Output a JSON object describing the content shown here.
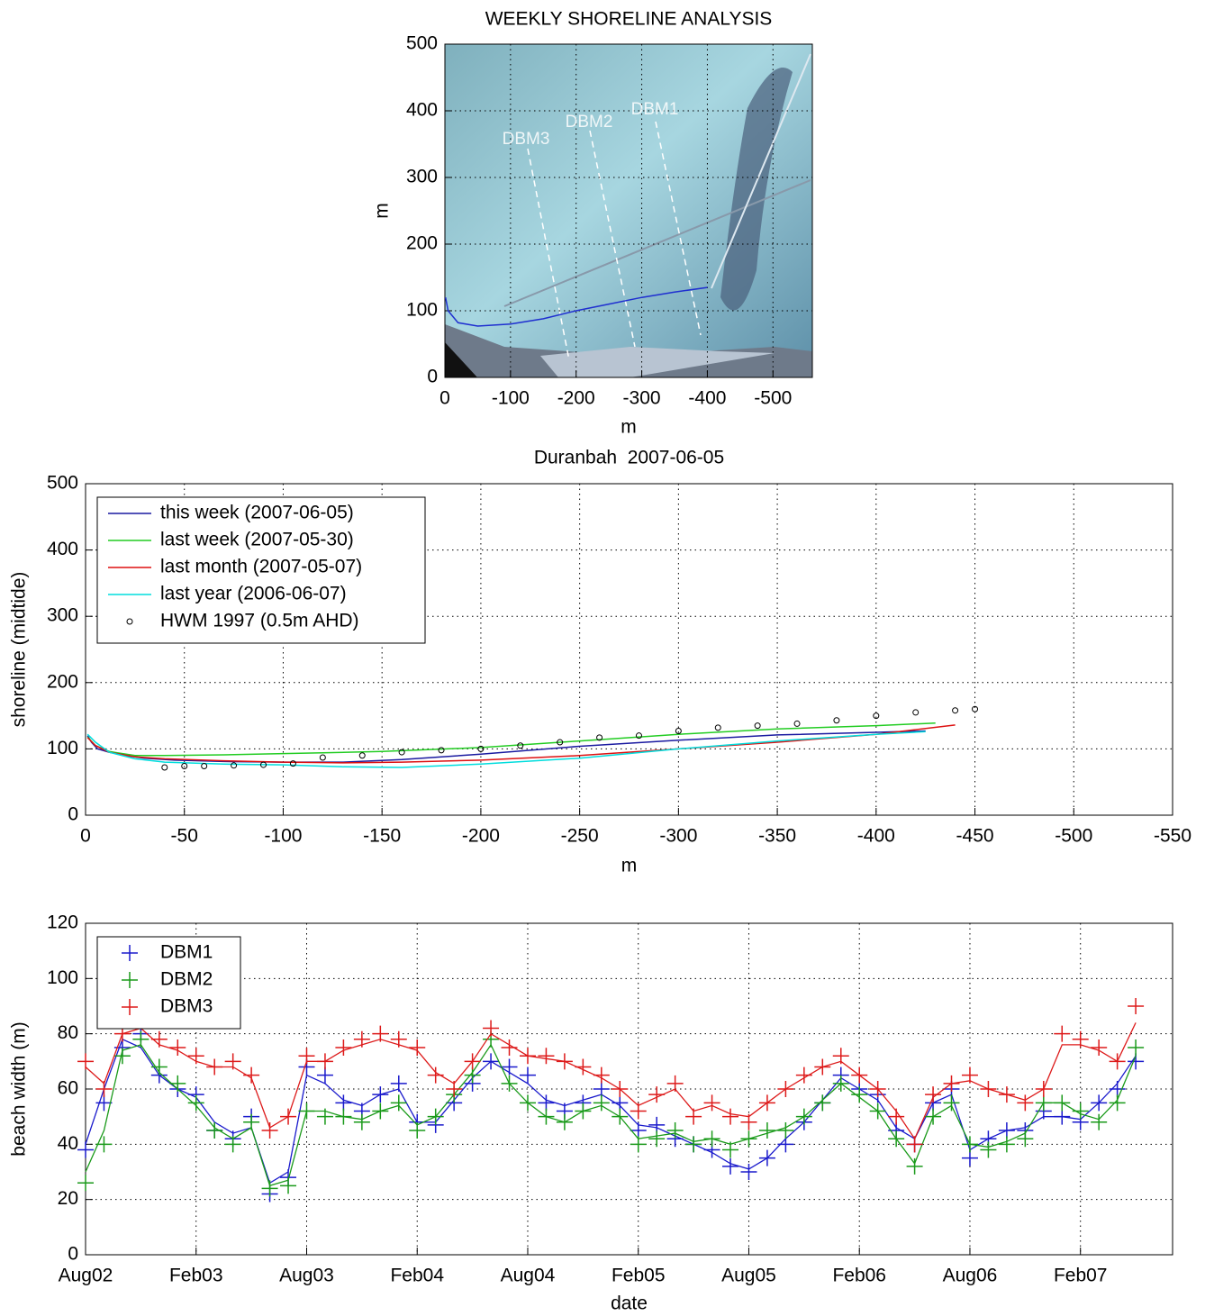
{
  "chart_data": [
    {
      "type": "line",
      "title": "WEEKLY SHORELINE ANALYSIS",
      "xlabel": "m",
      "ylabel": "m",
      "annotations": [
        "DBM3",
        "DBM2",
        "DBM1"
      ],
      "xlim": [
        0,
        -560
      ],
      "xticks": [
        0,
        -100,
        -200,
        -300,
        -400,
        -500
      ],
      "ylim": [
        0,
        500
      ],
      "yticks": [
        0,
        100,
        200,
        300,
        400,
        500
      ],
      "grid": true,
      "series": [
        {
          "color": "#1f2fd0",
          "x": [
            -1,
            -5,
            -20,
            -50,
            -100,
            -150,
            -200,
            -250,
            -300,
            -350,
            -400
          ],
          "values": [
            120,
            100,
            82,
            77,
            80,
            88,
            100,
            110,
            120,
            128,
            135
          ]
        }
      ]
    },
    {
      "type": "line",
      "title": "Duranbah  2007-06-05",
      "xlabel": "m",
      "ylabel": "shoreline (midtide)",
      "xlim": [
        0,
        -550
      ],
      "xticks": [
        0,
        -50,
        -100,
        -150,
        -200,
        -250,
        -300,
        -350,
        -400,
        -450,
        -500,
        -550
      ],
      "ylim": [
        0,
        500
      ],
      "yticks": [
        0,
        100,
        200,
        300,
        400,
        500
      ],
      "grid": true,
      "legend": "upper left",
      "series": [
        {
          "name": "this week (2007-06-05)",
          "color": "#1a1aa0",
          "x": [
            -1,
            -3,
            -6,
            -12,
            -20,
            -30,
            -45,
            -70,
            -100,
            -130,
            -160,
            -200,
            -250,
            -300,
            -350,
            -400,
            -425
          ],
          "values": [
            120,
            110,
            100,
            95,
            90,
            86,
            83,
            81,
            80,
            80,
            84,
            92,
            104,
            113,
            121,
            125,
            127
          ]
        },
        {
          "name": "last week (2007-05-30)",
          "color": "#22cc22",
          "x": [
            -1,
            -5,
            -12,
            -25,
            -40,
            -70,
            -100,
            -120,
            -150,
            -200,
            -250,
            -300,
            -350,
            -400,
            -430
          ],
          "values": [
            118,
            105,
            96,
            90,
            90,
            91,
            93,
            94,
            96,
            102,
            112,
            122,
            130,
            135,
            139
          ]
        },
        {
          "name": "last month (2007-05-07)",
          "color": "#dd1111",
          "x": [
            -1,
            -5,
            -12,
            -25,
            -40,
            -70,
            -100,
            -130,
            -160,
            -200,
            -250,
            -300,
            -350,
            -400,
            -440
          ],
          "values": [
            117,
            105,
            95,
            88,
            85,
            82,
            80,
            79,
            80,
            83,
            90,
            100,
            110,
            122,
            136
          ]
        },
        {
          "name": "last year (2006-06-07)",
          "color": "#00dddd",
          "x": [
            -1,
            -5,
            -12,
            -25,
            -40,
            -70,
            -100,
            -130,
            -160,
            -200,
            -250,
            -300,
            -350,
            -400,
            -425
          ],
          "values": [
            122,
            110,
            95,
            85,
            80,
            77,
            76,
            73,
            72,
            77,
            86,
            100,
            112,
            122,
            126
          ]
        },
        {
          "name": "HWM 1997 (0.5m AHD)",
          "color": "#000000",
          "marker": "o",
          "x": [
            -40,
            -50,
            -60,
            -75,
            -90,
            -105,
            -120,
            -140,
            -160,
            -180,
            -200,
            -220,
            -240,
            -260,
            -280,
            -300,
            -320,
            -340,
            -360,
            -380,
            -400,
            -420,
            -440,
            -450
          ],
          "values": [
            72,
            74,
            74,
            75,
            76,
            78,
            87,
            90,
            95,
            98,
            100,
            105,
            110,
            117,
            120,
            127,
            132,
            135,
            138,
            143,
            150,
            155,
            158,
            160
          ]
        }
      ]
    },
    {
      "type": "scatter",
      "xlabel": "date",
      "ylabel": "beach width (m)",
      "xlim": [
        "2002-08",
        "2007-07"
      ],
      "xticks": [
        {
          "value": "2002-08",
          "label": "Aug02"
        },
        {
          "value": "2003-02",
          "label": "Feb03"
        },
        {
          "value": "2003-08",
          "label": "Aug03"
        },
        {
          "value": "2004-02",
          "label": "Feb04"
        },
        {
          "value": "2004-08",
          "label": "Aug04"
        },
        {
          "value": "2005-02",
          "label": "Feb05"
        },
        {
          "value": "2005-08",
          "label": "Aug05"
        },
        {
          "value": "2006-02",
          "label": "Feb06"
        },
        {
          "value": "2006-08",
          "label": "Aug06"
        },
        {
          "value": "2007-02",
          "label": "Feb07"
        }
      ],
      "ylim": [
        0,
        120
      ],
      "yticks": [
        0,
        20,
        40,
        60,
        80,
        100,
        120
      ],
      "grid": true,
      "legend": "upper left",
      "x": [
        "2002-08",
        "2002-09",
        "2002-10",
        "2002-11",
        "2002-12",
        "2003-01",
        "2003-02",
        "2003-03",
        "2003-04",
        "2003-05",
        "2003-06",
        "2003-07",
        "2003-08",
        "2003-09",
        "2003-10",
        "2003-11",
        "2003-12",
        "2004-01",
        "2004-02",
        "2004-03",
        "2004-04",
        "2004-05",
        "2004-06",
        "2004-07",
        "2004-08",
        "2004-09",
        "2004-10",
        "2004-11",
        "2004-12",
        "2005-01",
        "2005-02",
        "2005-03",
        "2005-04",
        "2005-05",
        "2005-06",
        "2005-07",
        "2005-08",
        "2005-09",
        "2005-10",
        "2005-11",
        "2005-12",
        "2006-01",
        "2006-02",
        "2006-03",
        "2006-04",
        "2006-05",
        "2006-06",
        "2006-07",
        "2006-08",
        "2006-09",
        "2006-10",
        "2006-11",
        "2006-12",
        "2007-01",
        "2007-02",
        "2007-03",
        "2007-04",
        "2007-05"
      ],
      "series": [
        {
          "name": "DBM1",
          "color": "#1a1acc",
          "marker": "+",
          "values": [
            38,
            55,
            75,
            80,
            65,
            60,
            58,
            45,
            42,
            50,
            22,
            28,
            68,
            65,
            55,
            52,
            58,
            62,
            48,
            47,
            55,
            62,
            70,
            68,
            65,
            55,
            52,
            55,
            60,
            55,
            45,
            47,
            42,
            40,
            38,
            32,
            30,
            35,
            40,
            48,
            55,
            65,
            60,
            58,
            45,
            40,
            55,
            60,
            35,
            42,
            45,
            45,
            52,
            50,
            48,
            55,
            60,
            70
          ],
          "trend": [
            40,
            60,
            78,
            75,
            65,
            60,
            57,
            48,
            44,
            46,
            26,
            30,
            65,
            62,
            56,
            54,
            58,
            60,
            48,
            48,
            56,
            64,
            70,
            66,
            62,
            56,
            54,
            56,
            58,
            54,
            47,
            46,
            43,
            40,
            37,
            33,
            31,
            35,
            42,
            48,
            56,
            64,
            60,
            56,
            46,
            42,
            55,
            58,
            38,
            42,
            45,
            46,
            50,
            50,
            49,
            55,
            62,
            72
          ]
        },
        {
          "name": "DBM2",
          "color": "#1a9a1a",
          "marker": "+",
          "values": [
            26,
            40,
            72,
            78,
            68,
            62,
            55,
            45,
            40,
            48,
            24,
            25,
            52,
            50,
            50,
            48,
            52,
            55,
            45,
            50,
            58,
            65,
            78,
            62,
            55,
            50,
            48,
            52,
            55,
            50,
            40,
            42,
            45,
            40,
            42,
            38,
            42,
            45,
            45,
            50,
            55,
            62,
            58,
            52,
            42,
            32,
            50,
            55,
            40,
            38,
            40,
            42,
            55,
            55,
            52,
            48,
            55,
            75
          ],
          "trend": [
            30,
            45,
            74,
            76,
            66,
            60,
            54,
            46,
            42,
            46,
            25,
            27,
            52,
            52,
            50,
            49,
            52,
            54,
            47,
            50,
            58,
            66,
            76,
            62,
            55,
            50,
            48,
            52,
            54,
            50,
            42,
            43,
            44,
            41,
            42,
            40,
            42,
            44,
            46,
            50,
            56,
            62,
            57,
            52,
            42,
            33,
            50,
            54,
            40,
            39,
            41,
            44,
            55,
            55,
            51,
            49,
            56,
            72
          ]
        },
        {
          "name": "DBM3",
          "color": "#dd1a1a",
          "marker": "+",
          "values": [
            70,
            60,
            80,
            85,
            78,
            75,
            72,
            68,
            70,
            65,
            45,
            50,
            72,
            70,
            75,
            78,
            80,
            78,
            75,
            65,
            60,
            70,
            82,
            75,
            72,
            72,
            70,
            68,
            65,
            60,
            52,
            58,
            62,
            50,
            55,
            50,
            48,
            55,
            60,
            65,
            68,
            72,
            65,
            60,
            50,
            40,
            58,
            62,
            65,
            60,
            58,
            55,
            60,
            80,
            78,
            75,
            70,
            90
          ],
          "trend": [
            68,
            62,
            80,
            82,
            76,
            74,
            70,
            68,
            68,
            64,
            46,
            50,
            70,
            70,
            74,
            76,
            78,
            76,
            74,
            66,
            62,
            70,
            80,
            76,
            72,
            71,
            70,
            67,
            64,
            60,
            54,
            57,
            60,
            52,
            54,
            51,
            50,
            55,
            60,
            64,
            68,
            70,
            65,
            60,
            52,
            42,
            57,
            62,
            63,
            60,
            58,
            56,
            60,
            76,
            76,
            74,
            70,
            84
          ]
        }
      ]
    }
  ]
}
